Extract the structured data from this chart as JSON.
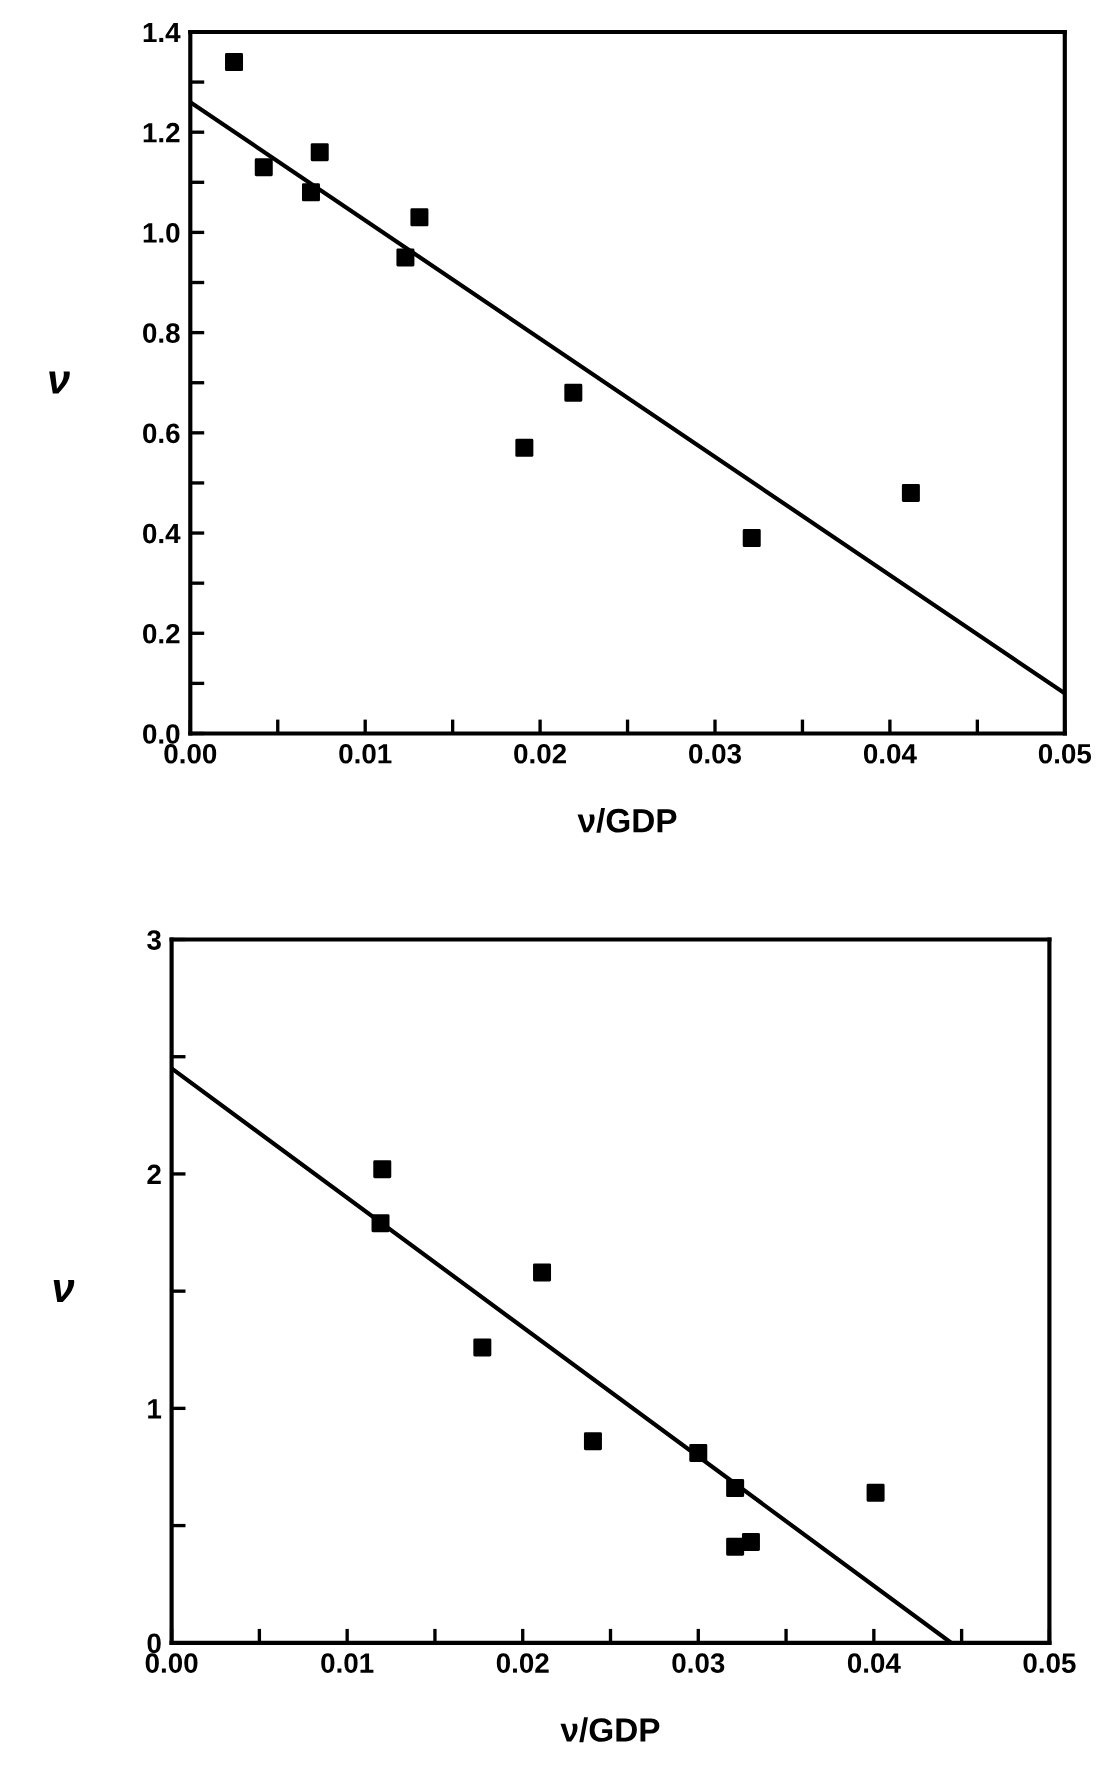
{
  "chart_data": [
    {
      "type": "scatter",
      "xlabel": "ν/GDP",
      "ylabel": "ν",
      "xlim": [
        0,
        0.05
      ],
      "ylim": [
        0,
        1.4
      ],
      "xticks": [
        {
          "value": 0,
          "label": "0.00"
        },
        {
          "value": 0.005,
          "label": null
        },
        {
          "value": 0.01,
          "label": "0.01"
        },
        {
          "value": 0.015,
          "label": null
        },
        {
          "value": 0.02,
          "label": "0.02"
        },
        {
          "value": 0.025,
          "label": null
        },
        {
          "value": 0.03,
          "label": "0.03"
        },
        {
          "value": 0.035,
          "label": null
        },
        {
          "value": 0.04,
          "label": "0.04"
        },
        {
          "value": 0.045,
          "label": null
        },
        {
          "value": 0.05,
          "label": "0.05"
        }
      ],
      "yticks": [
        {
          "value": 0,
          "label": "0.0"
        },
        {
          "value": 0.1,
          "label": null
        },
        {
          "value": 0.2,
          "label": "0.2"
        },
        {
          "value": 0.3,
          "label": null
        },
        {
          "value": 0.4,
          "label": "0.4"
        },
        {
          "value": 0.5,
          "label": null
        },
        {
          "value": 0.6,
          "label": "0.6"
        },
        {
          "value": 0.7,
          "label": null
        },
        {
          "value": 0.8,
          "label": "0.8"
        },
        {
          "value": 0.9,
          "label": null
        },
        {
          "value": 1.0,
          "label": "1.0"
        },
        {
          "value": 1.1,
          "label": null
        },
        {
          "value": 1.2,
          "label": "1.2"
        },
        {
          "value": 1.3,
          "label": null
        },
        {
          "value": 1.4,
          "label": "1.4"
        }
      ],
      "grid": false,
      "series": [
        {
          "marker": "square",
          "color": "#000000",
          "x": [
            0.0025,
            0.0042,
            0.0069,
            0.0074,
            0.0123,
            0.0131,
            0.0191,
            0.0219,
            0.0321,
            0.0412
          ],
          "values": [
            1.34,
            1.13,
            1.08,
            1.16,
            0.95,
            1.03,
            0.57,
            0.68,
            0.39,
            0.48
          ]
        },
        {
          "type": "line",
          "color": "#000000",
          "x": [
            0,
            0.05
          ],
          "values": [
            1.26,
            0.08
          ]
        }
      ]
    },
    {
      "type": "scatter",
      "xlabel": "ν/GDP",
      "ylabel": "ν",
      "xlim": [
        0,
        0.05
      ],
      "ylim": [
        0,
        3
      ],
      "xticks": [
        {
          "value": 0,
          "label": "0.00"
        },
        {
          "value": 0.005,
          "label": null
        },
        {
          "value": 0.01,
          "label": "0.01"
        },
        {
          "value": 0.015,
          "label": null
        },
        {
          "value": 0.02,
          "label": "0.02"
        },
        {
          "value": 0.025,
          "label": null
        },
        {
          "value": 0.03,
          "label": "0.03"
        },
        {
          "value": 0.035,
          "label": null
        },
        {
          "value": 0.04,
          "label": "0.04"
        },
        {
          "value": 0.045,
          "label": null
        },
        {
          "value": 0.05,
          "label": "0.05"
        }
      ],
      "yticks": [
        0,
        {
          "value": 0.5,
          "label": null
        },
        1,
        {
          "value": 1.5,
          "label": null
        },
        2,
        {
          "value": 2.5,
          "label": null
        },
        3
      ],
      "grid": false,
      "series": [
        {
          "marker": "square",
          "color": "#000000",
          "x": [
            0.012,
            0.0119,
            0.0211,
            0.0177,
            0.024,
            0.03,
            0.0321,
            0.0321,
            0.033,
            0.0401
          ],
          "values": [
            2.02,
            1.79,
            1.58,
            1.26,
            0.86,
            0.81,
            0.66,
            0.41,
            0.43,
            0.64
          ]
        },
        {
          "type": "line",
          "color": "#000000",
          "x": [
            0,
            0.0444
          ],
          "values": [
            2.45,
            0
          ]
        }
      ]
    }
  ]
}
